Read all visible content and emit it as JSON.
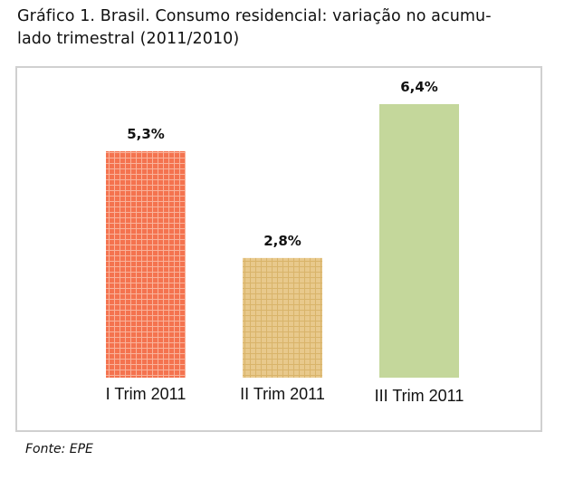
{
  "chart_data": {
    "type": "bar",
    "title": "Gráfico 1. Brasil. Consumo residencial: variação no acumulado trimestral (2011/2010)",
    "title_lines": [
      "Gráfico 1. Brasil. Consumo residencial: variação no acumu-",
      "lado trimestral (2011/2010)"
    ],
    "categories": [
      "I Trim 2011",
      "II Trim 2011",
      "III Trim 2011"
    ],
    "values": [
      5.3,
      2.8,
      6.4
    ],
    "data_labels": [
      "5,3%",
      "2,8%",
      "6,4%"
    ],
    "colors": [
      "#f4734f",
      "#e8c98c",
      "#c4d79b"
    ],
    "grid_colors": [
      "#f9b29a",
      "#d9b46a",
      "#c4d79b"
    ],
    "xlabel": "",
    "ylabel": "",
    "ylim": [
      0,
      6.4
    ],
    "grid": false,
    "legend": "none",
    "source": "Fonte: EPE"
  }
}
